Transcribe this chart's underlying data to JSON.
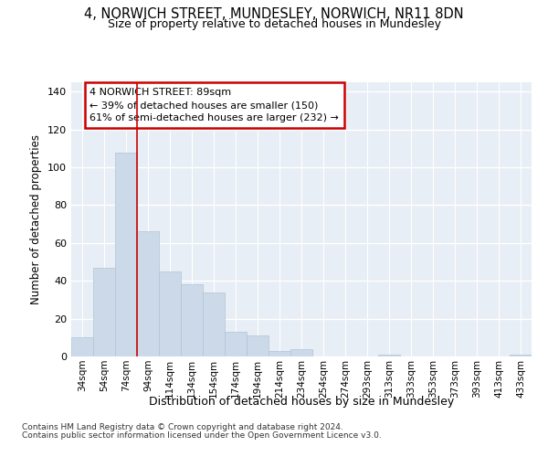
{
  "title": "4, NORWICH STREET, MUNDESLEY, NORWICH, NR11 8DN",
  "subtitle": "Size of property relative to detached houses in Mundesley",
  "xlabel": "Distribution of detached houses by size in Mundesley",
  "ylabel": "Number of detached properties",
  "bar_color": "#ccd9e8",
  "bar_edge_color": "#b0c4d8",
  "background_color": "#e8eef5",
  "categories": [
    "34sqm",
    "54sqm",
    "74sqm",
    "94sqm",
    "114sqm",
    "134sqm",
    "154sqm",
    "174sqm",
    "194sqm",
    "214sqm",
    "234sqm",
    "254sqm",
    "274sqm",
    "293sqm",
    "313sqm",
    "333sqm",
    "353sqm",
    "373sqm",
    "393sqm",
    "413sqm",
    "433sqm"
  ],
  "values": [
    10,
    47,
    108,
    66,
    45,
    38,
    34,
    13,
    11,
    3,
    4,
    0,
    0,
    0,
    1,
    0,
    0,
    0,
    0,
    0,
    1
  ],
  "annotation_text": "4 NORWICH STREET: 89sqm\n← 39% of detached houses are smaller (150)\n61% of semi-detached houses are larger (232) →",
  "annotation_box_color": "#ffffff",
  "annotation_box_edge": "#cc0000",
  "red_line_x": 3.0,
  "ylim": [
    0,
    145
  ],
  "yticks": [
    0,
    20,
    40,
    60,
    80,
    100,
    120,
    140
  ],
  "footnote1": "Contains HM Land Registry data © Crown copyright and database right 2024.",
  "footnote2": "Contains public sector information licensed under the Open Government Licence v3.0."
}
